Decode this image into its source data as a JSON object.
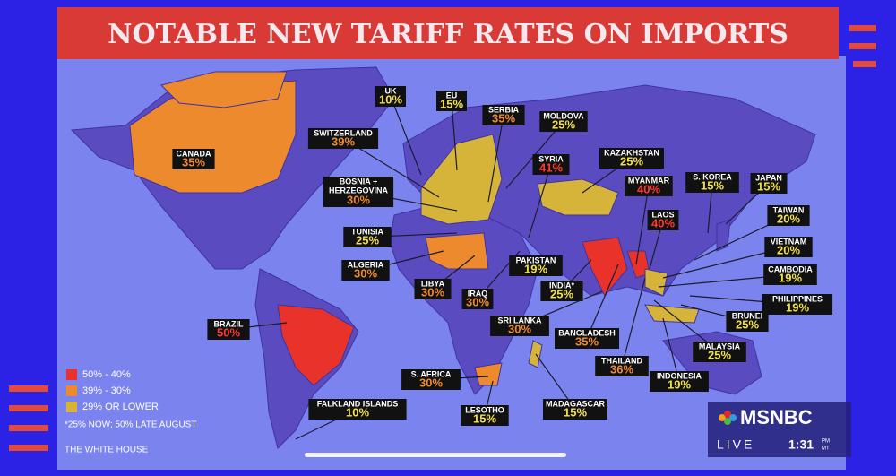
{
  "header": {
    "title": "NOTABLE NEW TARIFF RATES ON IMPORTS"
  },
  "labels": [
    {
      "name": "UK",
      "rate": "10%",
      "color": "#f2e14a"
    },
    {
      "name": "EU",
      "rate": "15%",
      "color": "#f2e14a"
    },
    {
      "name": "SERBIA",
      "rate": "35%",
      "color": "#f08a2c"
    },
    {
      "name": "MOLDOVA",
      "rate": "25%",
      "color": "#f2e14a"
    },
    {
      "name": "SWITZERLAND",
      "rate": "39%",
      "color": "#f08a2c"
    },
    {
      "name": "CANADA",
      "rate": "35%",
      "color": "#f08a2c"
    },
    {
      "name": "SYRIA",
      "rate": "41%",
      "color": "#ff3b2f"
    },
    {
      "name": "KAZAKHSTAN",
      "rate": "25%",
      "color": "#f2e14a"
    },
    {
      "name": [
        "BOSNIA +",
        "HERZEGOVINA"
      ],
      "rate": "30%",
      "color": "#f08a2c"
    },
    {
      "name": "MYANMAR",
      "rate": "40%",
      "color": "#ff3b2f"
    },
    {
      "name": "S. KOREA",
      "rate": "15%",
      "color": "#f2e14a"
    },
    {
      "name": "JAPAN",
      "rate": "15%",
      "color": "#f2e14a"
    },
    {
      "name": "LAOS",
      "rate": "40%",
      "color": "#ff3b2f"
    },
    {
      "name": "TAIWAN",
      "rate": "20%",
      "color": "#f2e14a"
    },
    {
      "name": "TUNISIA",
      "rate": "25%",
      "color": "#f2e14a"
    },
    {
      "name": "VIETNAM",
      "rate": "20%",
      "color": "#f2e14a"
    },
    {
      "name": "PAKISTAN",
      "rate": "19%",
      "color": "#f2e14a"
    },
    {
      "name": "ALGERIA",
      "rate": "30%",
      "color": "#f08a2c"
    },
    {
      "name": "CAMBODIA",
      "rate": "19%",
      "color": "#f2e14a"
    },
    {
      "name": "LIBYA",
      "rate": "30%",
      "color": "#f08a2c"
    },
    {
      "name": "INDIA*",
      "rate": "25%",
      "color": "#f2e14a"
    },
    {
      "name": "IRAQ",
      "rate": "30%",
      "color": "#f08a2c"
    },
    {
      "name": "PHILIPPINES",
      "rate": "19%",
      "color": "#f2e14a"
    },
    {
      "name": "SRI LANKA",
      "rate": "30%",
      "color": "#f08a2c"
    },
    {
      "name": "BRAZIL",
      "rate": "50%",
      "color": "#ff3b2f"
    },
    {
      "name": "BANGLADESH",
      "rate": "35%",
      "color": "#f08a2c"
    },
    {
      "name": "BRUNEI",
      "rate": "25%",
      "color": "#f2e14a"
    },
    {
      "name": "MALAYSIA",
      "rate": "25%",
      "color": "#f2e14a"
    },
    {
      "name": "THAILAND",
      "rate": "36%",
      "color": "#f08a2c"
    },
    {
      "name": "S. AFRICA",
      "rate": "30%",
      "color": "#f08a2c"
    },
    {
      "name": "INDONESIA",
      "rate": "19%",
      "color": "#f2e14a"
    },
    {
      "name": "FALKLAND ISLANDS",
      "rate": "10%",
      "color": "#f2e14a"
    },
    {
      "name": "LESOTHO",
      "rate": "15%",
      "color": "#f2e14a"
    },
    {
      "name": "MADAGASCAR",
      "rate": "15%",
      "color": "#f2e14a"
    }
  ],
  "legend": [
    {
      "label": "50% - 40%",
      "color": "#e8322a"
    },
    {
      "label": "39% - 30%",
      "color": "#ee8a2e"
    },
    {
      "label": "29% OR LOWER",
      "color": "#d6b43a"
    }
  ],
  "note": "*25% NOW; 50% LATE AUGUST",
  "source": "THE WHITE HOUSE",
  "broadcast": {
    "network": "MSNBC",
    "live": "LIVE",
    "time": "1:31",
    "ampm": "PM",
    "zone": "MT"
  }
}
